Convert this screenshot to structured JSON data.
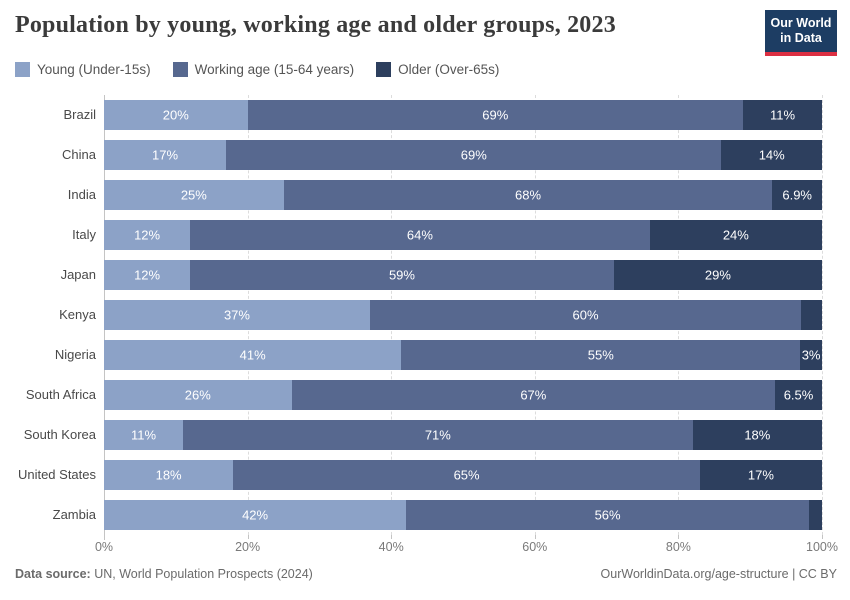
{
  "header": {
    "title": "Population by young, working age and older groups, 2023",
    "logo": {
      "line1": "Our World",
      "line2": "in Data",
      "bg_color": "#1d3d63",
      "accent_color": "#dc2f42"
    }
  },
  "legend": [
    {
      "label": "Young (Under-15s)",
      "color": "#8ca2c7"
    },
    {
      "label": "Working age (15-64 years)",
      "color": "#57688f"
    },
    {
      "label": "Older (Over-65s)",
      "color": "#2d3f5e"
    }
  ],
  "chart_data": {
    "type": "bar",
    "orientation": "horizontal",
    "stacked": true,
    "title": "Population by young, working age and older groups, 2023",
    "categories": [
      "Brazil",
      "China",
      "India",
      "Italy",
      "Japan",
      "Kenya",
      "Nigeria",
      "South Africa",
      "South Korea",
      "United States",
      "Zambia"
    ],
    "series": [
      {
        "name": "Young (Under-15s)",
        "key": "young",
        "color": "#8ca2c7",
        "values": [
          20,
          17,
          25,
          12,
          12,
          37,
          41,
          26,
          11,
          18,
          42
        ],
        "labels": [
          "20%",
          "17%",
          "25%",
          "12%",
          "12%",
          "37%",
          "41%",
          "26%",
          "11%",
          "18%",
          "42%"
        ]
      },
      {
        "name": "Working age (15-64 years)",
        "key": "working-age",
        "color": "#57688f",
        "values": [
          69,
          69,
          68,
          64,
          59,
          60,
          55,
          67,
          71,
          65,
          56
        ],
        "labels": [
          "69%",
          "69%",
          "68%",
          "64%",
          "59%",
          "60%",
          "55%",
          "67%",
          "71%",
          "65%",
          "56%"
        ]
      },
      {
        "name": "Older (Over-65s)",
        "key": "older",
        "color": "#2d3f5e",
        "values": [
          11,
          14,
          6.9,
          24,
          29,
          2.9,
          3,
          6.5,
          18,
          17,
          1.8
        ],
        "labels": [
          "11%",
          "14%",
          "6.9%",
          "24%",
          "29%",
          "",
          "3%",
          "6.5%",
          "18%",
          "17%",
          ""
        ]
      }
    ],
    "x_ticks": [
      "0%",
      "20%",
      "40%",
      "60%",
      "80%",
      "100%"
    ],
    "xlim": [
      0,
      100
    ],
    "grid": "dashed-vertical",
    "legend_position": "top"
  },
  "footer": {
    "source_label": "Data source:",
    "source_text": " UN, World Population Prospects (2024)",
    "credit": "OurWorldinData.org/age-structure | CC BY"
  }
}
